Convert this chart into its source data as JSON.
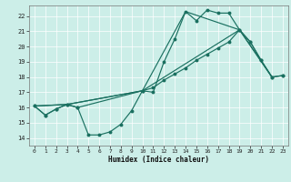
{
  "bg_color": "#cceee8",
  "grid_color": "#ffffff",
  "line_color": "#1a7060",
  "xlabel": "Humidex (Indice chaleur)",
  "xlim": [
    -0.5,
    23.5
  ],
  "ylim": [
    13.5,
    22.7
  ],
  "xticks": [
    0,
    1,
    2,
    3,
    4,
    5,
    6,
    7,
    8,
    9,
    10,
    11,
    12,
    13,
    14,
    15,
    16,
    17,
    18,
    19,
    20,
    21,
    22,
    23
  ],
  "yticks": [
    14,
    15,
    16,
    17,
    18,
    19,
    20,
    21,
    22
  ],
  "line1_x": [
    0,
    1,
    2,
    3,
    4,
    5,
    6,
    7,
    8,
    9,
    10,
    11,
    12,
    13,
    14,
    15,
    16,
    17,
    18,
    19,
    20,
    21,
    22,
    23
  ],
  "line1_y": [
    16.1,
    15.5,
    15.9,
    16.2,
    16.0,
    14.2,
    14.2,
    14.4,
    14.9,
    15.8,
    17.1,
    17.0,
    19.0,
    20.5,
    22.3,
    21.7,
    22.4,
    22.2,
    22.2,
    21.1,
    20.3,
    19.1,
    18.0,
    18.1
  ],
  "line2_x": [
    0,
    1,
    2,
    3,
    4,
    10,
    11,
    12,
    13,
    14,
    15,
    16,
    17,
    18,
    19,
    20,
    21,
    22,
    23
  ],
  "line2_y": [
    16.1,
    15.5,
    15.9,
    16.2,
    16.0,
    17.1,
    17.3,
    17.8,
    18.2,
    18.6,
    19.1,
    19.5,
    19.9,
    20.3,
    21.1,
    20.3,
    19.1,
    18.0,
    18.1
  ],
  "line3_x": [
    0,
    3,
    10,
    19,
    22
  ],
  "line3_y": [
    16.1,
    16.2,
    17.1,
    21.1,
    18.0
  ],
  "line4_x": [
    0,
    3,
    10,
    14,
    19,
    22
  ],
  "line4_y": [
    16.1,
    16.2,
    17.1,
    22.3,
    21.1,
    18.0
  ]
}
